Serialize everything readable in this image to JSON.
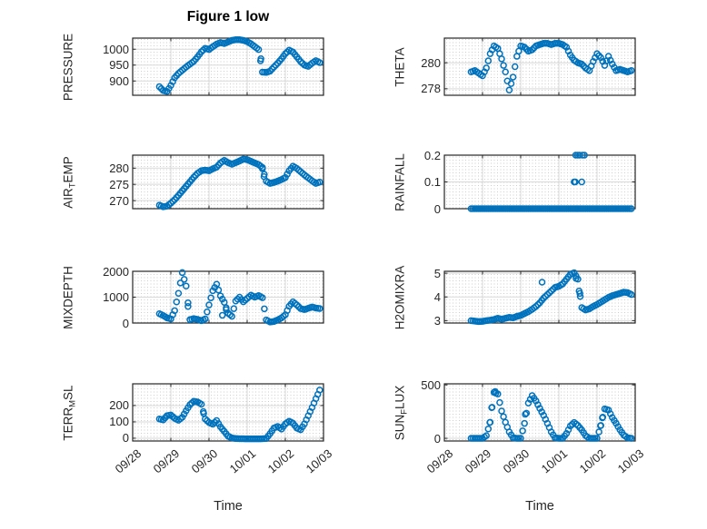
{
  "title": "Figure 1 low",
  "x_axis": {
    "label": "Time",
    "tick_labels": [
      "09/28",
      "09/29",
      "09/30",
      "10/01",
      "10/02",
      "10/03"
    ],
    "range_days": [
      0,
      5
    ]
  },
  "colors": {
    "marker": "#0072BD",
    "axis": "#262626",
    "major_grid": "#d9d9d9",
    "minor_grid_dots": "#cdcdcd",
    "background": "#ffffff",
    "title_text": "#000000"
  },
  "marker": {
    "shape": "open-circle",
    "radius": 3,
    "stroke_width": 1.5
  },
  "x_days": [
    0.7,
    0.8,
    0.9,
    1.0,
    1.1,
    1.2,
    1.3,
    1.4,
    1.5,
    1.6,
    1.7,
    1.8,
    1.9,
    2.0,
    2.1,
    2.2,
    2.3,
    2.4,
    2.5,
    2.6,
    2.7,
    2.8,
    2.9,
    3.0,
    3.1,
    3.2,
    3.3,
    3.4,
    3.5,
    3.6,
    3.7,
    3.8,
    3.9,
    4.0,
    4.1,
    4.2,
    4.3,
    4.4,
    4.5,
    4.6,
    4.7,
    4.8,
    4.9
  ],
  "chart_data": [
    {
      "id": "pressure",
      "type": "scatter",
      "row": 0,
      "col": 0,
      "ylabel": "PRESSURE",
      "ylabel_parts": [
        {
          "text": "PRESSURE"
        }
      ],
      "ylim": [
        855,
        1035
      ],
      "ytick_values": [
        900,
        950,
        1000
      ],
      "ytick_labels": [
        "900",
        "950",
        "1000"
      ],
      "y": [
        882,
        870,
        867,
        886,
        910,
        924,
        934,
        944,
        953,
        962,
        976,
        992,
        1003,
        999,
        1008,
        1016,
        1021,
        1018,
        1023,
        1028,
        1030,
        1030,
        1028,
        1024,
        1017,
        1008,
        999,
        928,
        927,
        931,
        944,
        956,
        970,
        986,
        997,
        991,
        976,
        961,
        950,
        946,
        956,
        964,
        958
      ],
      "extra_points": [
        [
          3.36,
          970
        ]
      ]
    },
    {
      "id": "theta",
      "type": "scatter",
      "row": 0,
      "col": 1,
      "ylabel": "THETA",
      "ylabel_parts": [
        {
          "text": "THETA"
        }
      ],
      "ylim": [
        277.5,
        281.9
      ],
      "ytick_values": [
        278,
        280
      ],
      "ytick_labels": [
        "278",
        "280"
      ],
      "y": [
        279.3,
        279.4,
        279.2,
        279.0,
        279.6,
        280.7,
        281.3,
        281.1,
        280.3,
        279.3,
        277.9,
        278.9,
        280.5,
        281.3,
        281.2,
        280.9,
        281.0,
        281.3,
        281.4,
        281.5,
        281.5,
        281.4,
        281.5,
        281.5,
        281.4,
        281.2,
        280.6,
        280.2,
        280.0,
        279.9,
        279.6,
        279.4,
        280.1,
        280.7,
        280.4,
        279.8,
        280.5,
        279.9,
        279.4,
        279.5,
        279.4,
        279.3,
        279.4
      ],
      "extra_points": []
    },
    {
      "id": "air_temp",
      "type": "scatter",
      "row": 1,
      "col": 0,
      "ylabel": "AIR_TEMP",
      "ylabel_parts": [
        {
          "text": "AIR"
        },
        {
          "text": "T",
          "subscript": true
        },
        {
          "text": "EMP"
        }
      ],
      "ylim": [
        267.5,
        284
      ],
      "ytick_values": [
        270,
        275,
        280
      ],
      "ytick_labels": [
        "270",
        "275",
        "280"
      ],
      "y": [
        268.6,
        268.1,
        268.3,
        269.2,
        270.3,
        271.6,
        273.0,
        274.4,
        275.8,
        277.2,
        278.4,
        279.2,
        279.4,
        279.2,
        279.8,
        280.3,
        281.6,
        282.4,
        281.7,
        281.2,
        281.7,
        282.2,
        282.8,
        282.6,
        282.1,
        281.6,
        281.1,
        280.2,
        276.0,
        275.3,
        275.6,
        276.0,
        276.5,
        277.1,
        279.2,
        280.6,
        279.9,
        278.9,
        277.9,
        277.0,
        276.1,
        275.3,
        275.7
      ],
      "extra_points": [
        [
          3.4,
          279.8
        ],
        [
          3.44,
          277.4
        ]
      ]
    },
    {
      "id": "rainfall",
      "type": "scatter",
      "row": 1,
      "col": 1,
      "ylabel": "RAINFALL",
      "ylabel_parts": [
        {
          "text": "RAINFALL"
        }
      ],
      "ylim": [
        0,
        0.2
      ],
      "ytick_values": [
        0,
        0.1,
        0.2
      ],
      "ytick_labels": [
        "0",
        "0.1",
        "0.2"
      ],
      "y": [
        0,
        0,
        0,
        0,
        0,
        0,
        0,
        0,
        0,
        0,
        0,
        0,
        0,
        0,
        0,
        0,
        0,
        0,
        0,
        0,
        0,
        0,
        0,
        0,
        0,
        0,
        0,
        0,
        0,
        0,
        0,
        0,
        0,
        0,
        0,
        0,
        0,
        0,
        0,
        0,
        0,
        0,
        0
      ],
      "extra_points": [
        [
          3.4,
          0.1
        ],
        [
          3.43,
          0.1
        ],
        [
          3.6,
          0.1
        ],
        [
          3.44,
          0.2
        ],
        [
          3.49,
          0.2
        ],
        [
          3.54,
          0.2
        ],
        [
          3.62,
          0.2
        ],
        [
          3.67,
          0.2
        ]
      ]
    },
    {
      "id": "mixdepth",
      "type": "scatter",
      "row": 2,
      "col": 0,
      "ylabel": "MIXDEPTH",
      "ylabel_parts": [
        {
          "text": "MIXDEPTH"
        }
      ],
      "ylim": [
        0,
        2000
      ],
      "ytick_values": [
        0,
        1000,
        2000
      ],
      "ytick_labels": [
        "0",
        "1000",
        "2000"
      ],
      "y": [
        360,
        290,
        200,
        160,
        480,
        1150,
        1950,
        1430,
        130,
        170,
        140,
        90,
        160,
        700,
        1250,
        1500,
        1050,
        800,
        380,
        260,
        850,
        1000,
        820,
        950,
        1080,
        1000,
        1060,
        980,
        120,
        40,
        60,
        120,
        200,
        320,
        650,
        820,
        700,
        560,
        520,
        570,
        620,
        580,
        560
      ],
      "extra_points": [
        [
          1.45,
          640
        ],
        [
          2.35,
          300
        ],
        [
          2.45,
          520
        ]
      ]
    },
    {
      "id": "h2omixra",
      "type": "scatter",
      "row": 2,
      "col": 1,
      "ylabel": "H2OMIXRA",
      "ylabel_parts": [
        {
          "text": "H2OMIXRA"
        }
      ],
      "ylim": [
        2.9,
        5.08
      ],
      "ytick_values": [
        3,
        4,
        5
      ],
      "ytick_labels": [
        "3",
        "4",
        "5"
      ],
      "y": [
        3.0,
        2.98,
        2.96,
        2.97,
        3.0,
        3.02,
        3.05,
        3.1,
        3.06,
        3.1,
        3.14,
        3.12,
        3.18,
        3.22,
        3.3,
        3.38,
        3.48,
        3.6,
        3.75,
        3.95,
        4.1,
        4.25,
        4.4,
        4.45,
        4.55,
        4.75,
        4.95,
        5.02,
        4.75,
        3.55,
        3.45,
        3.5,
        3.6,
        3.68,
        3.78,
        3.88,
        3.98,
        4.05,
        4.1,
        4.15,
        4.2,
        4.18,
        4.1
      ],
      "extra_points": [
        [
          2.56,
          4.62
        ],
        [
          3.45,
          4.78
        ],
        [
          3.53,
          4.25
        ],
        [
          3.56,
          4.02
        ]
      ]
    },
    {
      "id": "terr_msl",
      "type": "scatter",
      "row": 3,
      "col": 0,
      "ylabel": "TERR_MSL",
      "ylabel_parts": [
        {
          "text": "TERR"
        },
        {
          "text": "M",
          "subscript": true
        },
        {
          "text": "SL"
        }
      ],
      "ylim": [
        -17,
        333
      ],
      "ytick_values": [
        0,
        100,
        200
      ],
      "ytick_labels": [
        "0",
        "100",
        "200"
      ],
      "y": [
        118,
        112,
        138,
        142,
        122,
        110,
        128,
        168,
        205,
        226,
        222,
        208,
        118,
        96,
        86,
        108,
        70,
        42,
        12,
        2,
        -2,
        -3,
        -3,
        -4,
        -4,
        -4,
        -4,
        -3,
        -2,
        28,
        62,
        72,
        56,
        88,
        104,
        92,
        62,
        52,
        88,
        138,
        188,
        242,
        295
      ],
      "extra_points": [
        [
          1.86,
          152
        ]
      ]
    },
    {
      "id": "sun_flux",
      "type": "scatter",
      "row": 3,
      "col": 1,
      "ylabel": "SUN_FLUX",
      "ylabel_parts": [
        {
          "text": "SUN"
        },
        {
          "text": "F",
          "subscript": true
        },
        {
          "text": "LUX"
        }
      ],
      "ylim": [
        -25,
        510
      ],
      "ytick_values": [
        0,
        500
      ],
      "ytick_labels": [
        "0",
        "500"
      ],
      "y": [
        0,
        0,
        0,
        0,
        25,
        150,
        430,
        415,
        255,
        150,
        60,
        5,
        0,
        0,
        140,
        330,
        400,
        350,
        280,
        215,
        140,
        60,
        5,
        0,
        0,
        45,
        115,
        148,
        120,
        78,
        25,
        0,
        0,
        0,
        120,
        275,
        265,
        195,
        140,
        80,
        30,
        5,
        0
      ],
      "extra_points": [
        [
          1.19,
          148
        ],
        [
          1.24,
          287
        ],
        [
          1.33,
          438
        ],
        [
          2.12,
          225
        ],
        [
          4.09,
          118
        ],
        [
          4.14,
          192
        ]
      ]
    }
  ]
}
